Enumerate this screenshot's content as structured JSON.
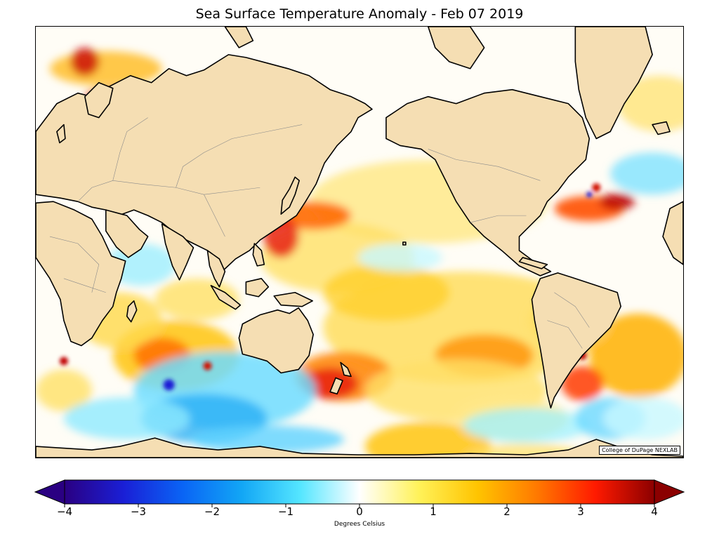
{
  "title": "Sea Surface Temperature Anomaly - Feb 07 2019",
  "credit": "College of DuPage NEXLAB",
  "colorbar": {
    "label": "Degrees Celsius",
    "ticks": [
      "−4",
      "−3",
      "−2",
      "−1",
      "0",
      "1",
      "2",
      "3",
      "4"
    ],
    "min": -4,
    "max": 4,
    "extend": "both",
    "colors": [
      "#2a0082",
      "#1a1fd6",
      "#0a64f5",
      "#12a6f5",
      "#55e6ff",
      "#ffffff",
      "#fff25a",
      "#ffc400",
      "#ff7a00",
      "#ff1a00",
      "#8b0000"
    ]
  },
  "map": {
    "land_color": "#f5deb3",
    "ocean_base_color": "#fffdf6",
    "projection": "Mercator, Pacific-centered"
  },
  "chart_data": {
    "type": "heatmap",
    "title": "Sea Surface Temperature Anomaly - Feb 07 2019",
    "colorbar_label": "Degrees Celsius",
    "value_range": [
      -4,
      4
    ],
    "colorbar_ticks": [
      -4,
      -3,
      -2,
      -1,
      0,
      1,
      2,
      3,
      4
    ]
  }
}
